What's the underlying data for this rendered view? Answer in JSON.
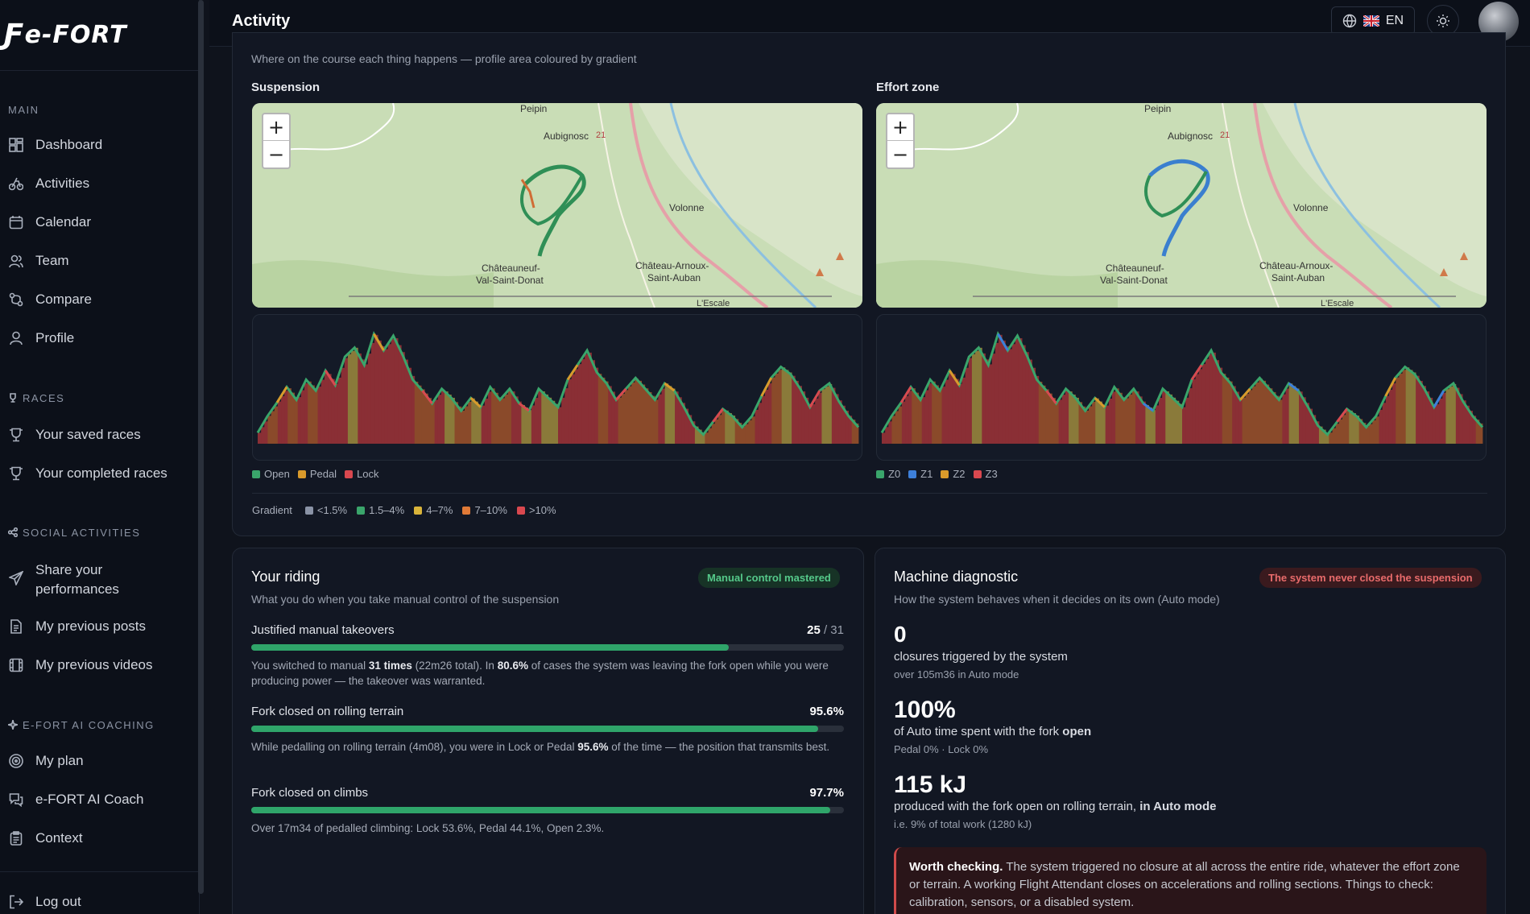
{
  "app": {
    "logo": "e-FORT",
    "page_title": "Activity",
    "language": "EN"
  },
  "sidebar": {
    "sections": {
      "main": "MAIN",
      "races": "RACES",
      "social": "SOCIAL ACTIVITIES",
      "coaching": "E-FORT AI COACHING"
    },
    "main_items": [
      "Dashboard",
      "Activities",
      "Calendar",
      "Team",
      "Compare",
      "Profile"
    ],
    "races_items": [
      "Your saved races",
      "Your completed races"
    ],
    "social_items": [
      "Share your performances",
      "My previous posts",
      "My previous videos"
    ],
    "coaching_items": [
      "My plan",
      "e-FORT AI Coach",
      "Context"
    ],
    "logout": "Log out"
  },
  "course_panel": {
    "subtitle": "Where on the course each thing happens — profile area coloured by gradient",
    "suspension_title": "Suspension",
    "effort_title": "Effort zone",
    "map_labels": [
      "Peipin",
      "Aubignosc",
      "Volonne",
      "Châteauneuf-",
      "Val-Saint-Donat",
      "Château-Arnoux-",
      "Saint-Auban",
      "L'Escale",
      "21"
    ],
    "suspension_legend": [
      {
        "label": "Open",
        "color": "#3aa56b"
      },
      {
        "label": "Pedal",
        "color": "#d99a2b"
      },
      {
        "label": "Lock",
        "color": "#d9484f"
      }
    ],
    "effort_legend": [
      {
        "label": "Z0",
        "color": "#3aa56b"
      },
      {
        "label": "Z1",
        "color": "#3d7fd9"
      },
      {
        "label": "Z2",
        "color": "#d99a2b"
      },
      {
        "label": "Z3",
        "color": "#d9484f"
      }
    ],
    "gradient_title": "Gradient",
    "gradient_legend": [
      {
        "label": "<1.5%",
        "color": "#8a93a6"
      },
      {
        "label": "1.5–4%",
        "color": "#3aa56b"
      },
      {
        "label": "4–7%",
        "color": "#d9b43a"
      },
      {
        "label": "7–10%",
        "color": "#e07a37"
      },
      {
        "label": ">10%",
        "color": "#d9484f"
      }
    ],
    "profile_elevation": [
      12,
      30,
      45,
      62,
      48,
      70,
      58,
      80,
      64,
      95,
      105,
      86,
      120,
      102,
      118,
      96,
      70,
      58,
      44,
      60,
      50,
      36,
      50,
      40,
      62,
      48,
      60,
      44,
      36,
      60,
      50,
      40,
      70,
      86,
      102,
      78,
      66,
      48,
      60,
      72,
      60,
      48,
      66,
      58,
      40,
      20,
      10,
      24,
      38,
      30,
      18,
      30,
      52,
      72,
      84,
      76,
      60,
      40,
      58,
      66,
      46,
      30,
      18
    ]
  },
  "riding": {
    "title": "Your riding",
    "subtitle": "What you do when you take manual control of the suspension",
    "badge": "Manual control mastered",
    "rows": [
      {
        "label": "Justified manual takeovers",
        "value": "25",
        "value_suffix": "/ 31",
        "fraction": 0.806,
        "text": "You switched to manual <b>31 times</b> (22m26 total). In <b>80.6%</b> of cases the system was leaving the fork open while you were producing power — the takeover was warranted."
      },
      {
        "label": "Fork closed on rolling terrain",
        "value": "95.6%",
        "value_suffix": "",
        "fraction": 0.956,
        "text": "While pedalling on rolling terrain (4m08), you were in Lock or Pedal <b>95.6%</b> of the time — the position that transmits best."
      },
      {
        "label": "Fork closed on climbs",
        "value": "97.7%",
        "value_suffix": "",
        "fraction": 0.977,
        "text": "Over 17m34 of pedalled climbing: Lock 53.6%, Pedal 44.1%, Open 2.3%."
      }
    ]
  },
  "diagnostic": {
    "title": "Machine diagnostic",
    "subtitle": "How the system behaves when it decides on its own (Auto mode)",
    "badge": "The system never closed the suspension",
    "stats": [
      {
        "value": "0",
        "line": "closures triggered by the system",
        "note": "over 105m36 in Auto mode"
      },
      {
        "value": "100%",
        "line": "of Auto time spent with the fork <b>open</b>",
        "note": "Pedal 0% · Lock 0%"
      },
      {
        "value": "115 kJ",
        "line": "produced with the fork open on rolling terrain, <b>in Auto mode</b>",
        "note": "i.e. 9% of total work (1280 kJ)"
      }
    ],
    "warning_title": "Worth checking.",
    "warning_text": "The system triggered no closure at all across the entire ride, whatever the effort zone or terrain. A working Flight Attendant closes on accelerations and rolling sections. Things to check: calibration, sensors, or a disabled system."
  }
}
